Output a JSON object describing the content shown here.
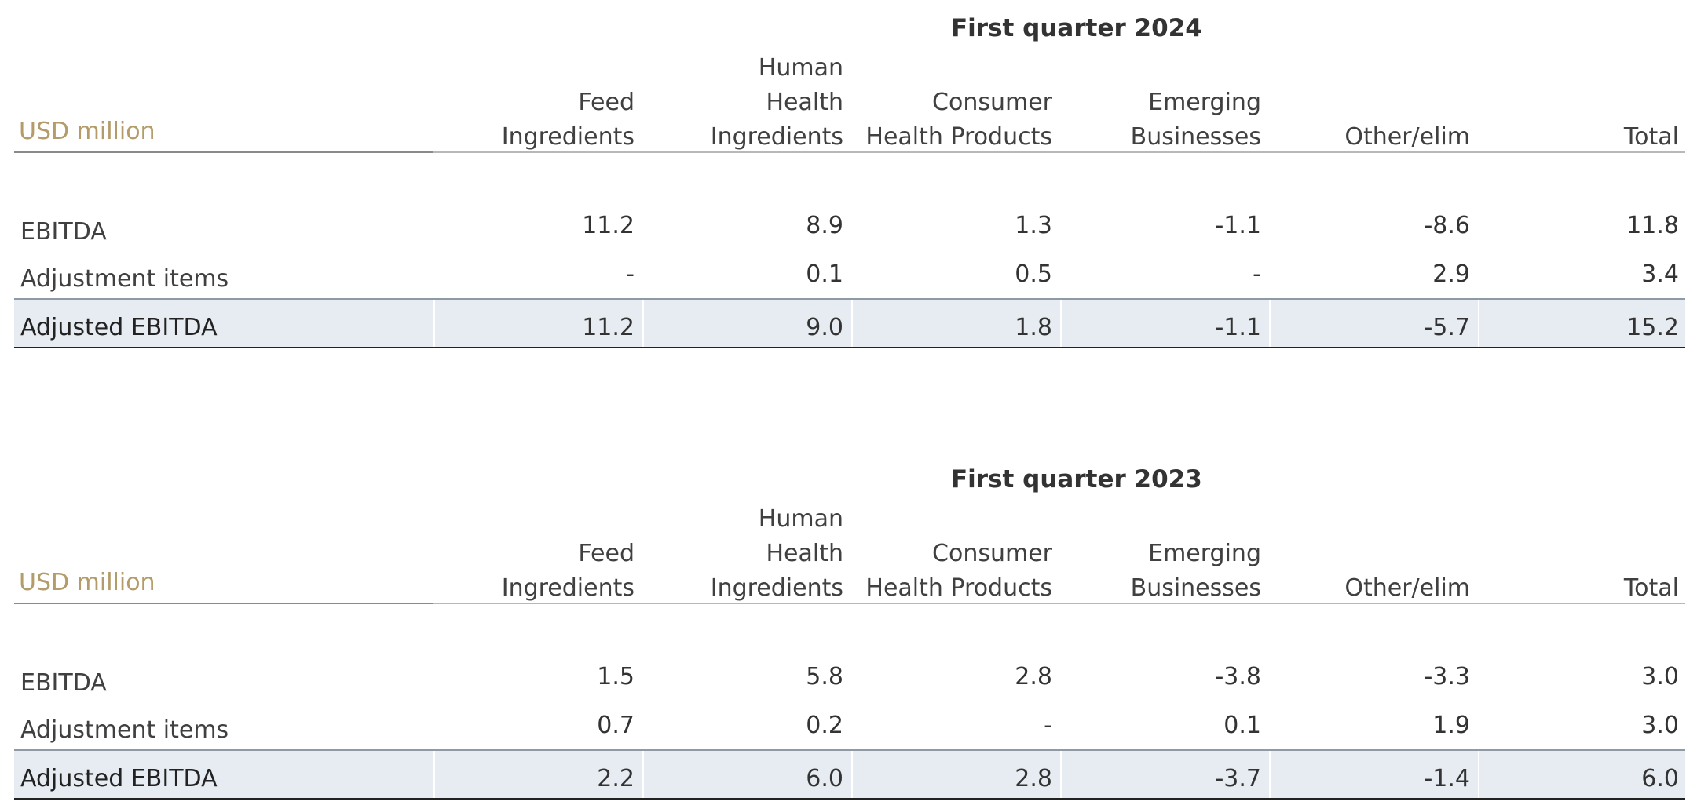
{
  "tables": [
    {
      "title": "First quarter 2024",
      "unit_label": "USD million",
      "columns": [
        {
          "lines": [
            "",
            "Feed",
            "Ingredients"
          ]
        },
        {
          "lines": [
            "Human",
            "Health",
            "Ingredients"
          ]
        },
        {
          "lines": [
            "",
            "Consumer",
            "Health Products"
          ]
        },
        {
          "lines": [
            "",
            "Emerging",
            "Businesses"
          ]
        },
        {
          "lines": [
            "",
            "",
            "Other/elim"
          ]
        },
        {
          "lines": [
            "",
            "",
            "Total"
          ]
        }
      ],
      "rows": [
        {
          "label": "EBITDA",
          "values": [
            "11.2",
            "8.9",
            "1.3",
            "-1.1",
            "-8.6",
            "11.8"
          ]
        },
        {
          "label": "Adjustment items",
          "values": [
            "-",
            "0.1",
            "0.5",
            "-",
            "2.9",
            "3.4"
          ]
        },
        {
          "label": "Adjusted EBITDA",
          "values": [
            "11.2",
            "9.0",
            "1.8",
            "-1.1",
            "-5.7",
            "15.2"
          ]
        }
      ]
    },
    {
      "title": "First quarter 2023",
      "unit_label": "USD million",
      "columns": [
        {
          "lines": [
            "",
            "Feed",
            "Ingredients"
          ]
        },
        {
          "lines": [
            "Human",
            "Health",
            "Ingredients"
          ]
        },
        {
          "lines": [
            "",
            "Consumer",
            "Health Products"
          ]
        },
        {
          "lines": [
            "",
            "Emerging",
            "Businesses"
          ]
        },
        {
          "lines": [
            "",
            "",
            "Other/elim"
          ]
        },
        {
          "lines": [
            "",
            "",
            "Total"
          ]
        }
      ],
      "rows": [
        {
          "label": "EBITDA",
          "values": [
            "1.5",
            "5.8",
            "2.8",
            "-3.8",
            "-3.3",
            "3.0"
          ]
        },
        {
          "label": "Adjustment items",
          "values": [
            "0.7",
            "0.2",
            "-",
            "0.1",
            "1.9",
            "3.0"
          ]
        },
        {
          "label": "Adjusted EBITDA",
          "values": [
            "2.2",
            "6.0",
            "2.8",
            "-3.7",
            "-1.4",
            "6.0"
          ]
        }
      ]
    }
  ]
}
